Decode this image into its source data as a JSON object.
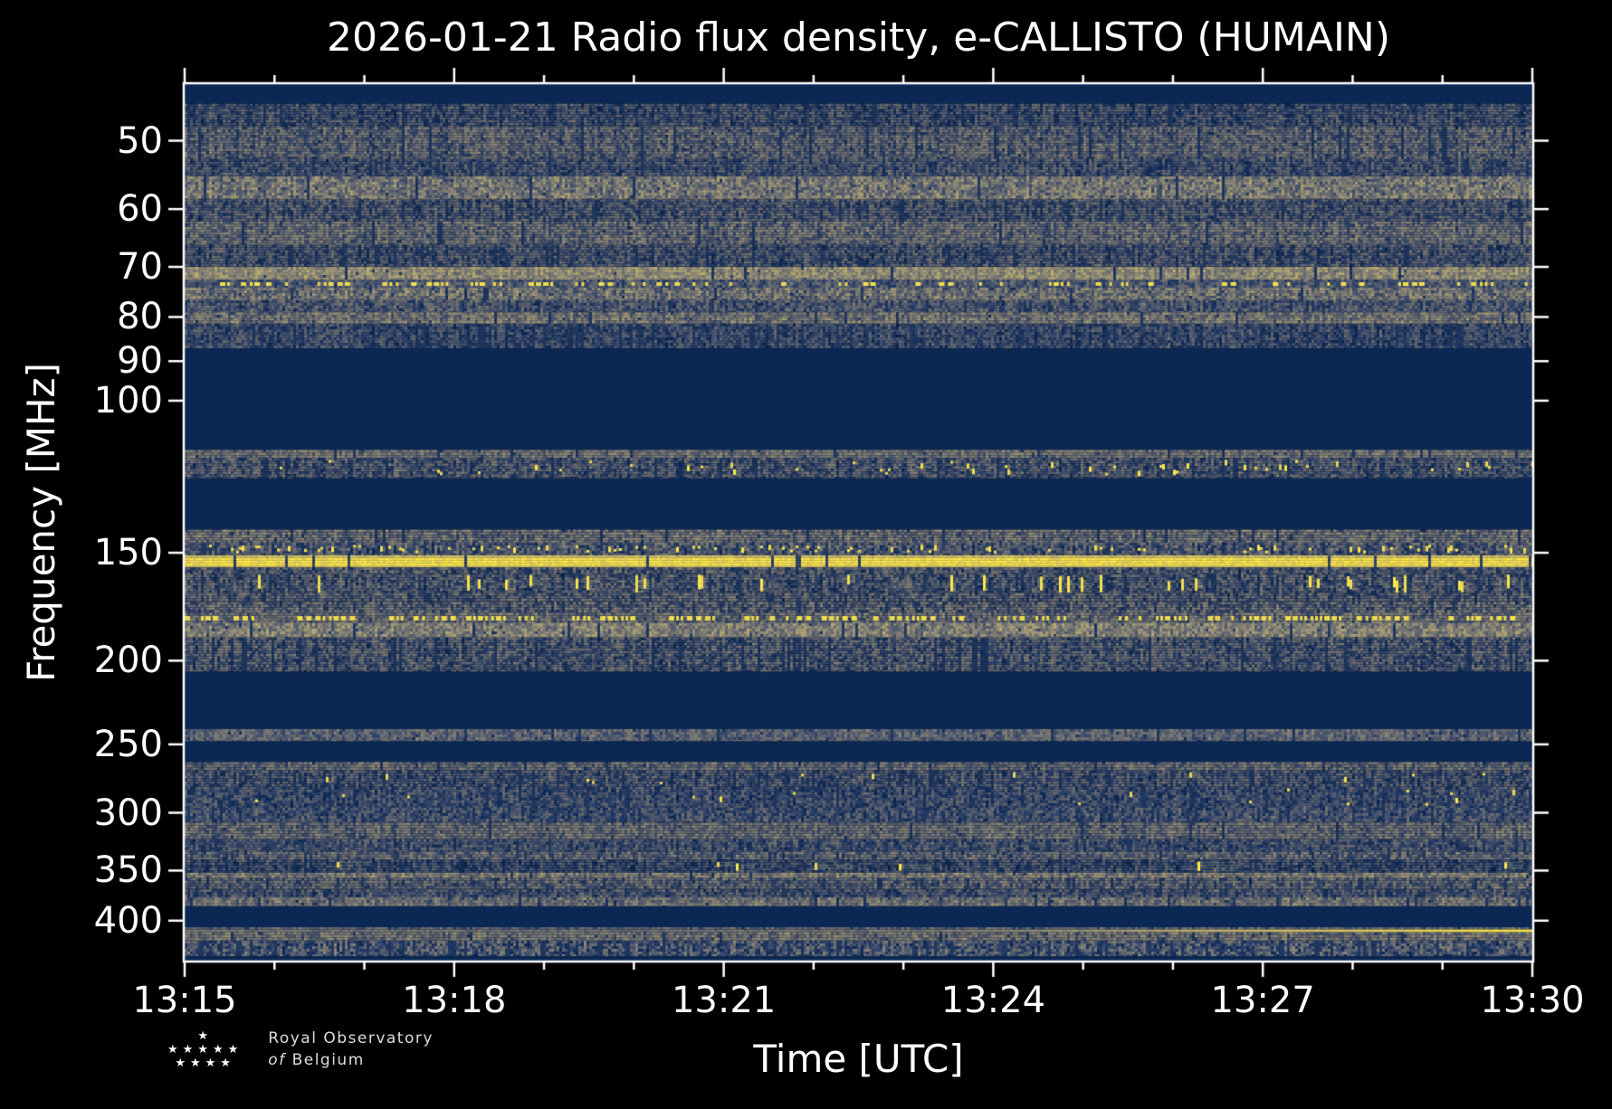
{
  "figure": {
    "title": "2026-01-21 Radio flux density, e-CALLISTO (HUMAIN)",
    "background_color": "#000000",
    "text_color": "#ffffff"
  },
  "x_axis": {
    "label": "Time [UTC]",
    "major_ticks": [
      "13:15",
      "13:18",
      "13:21",
      "13:24",
      "13:27",
      "13:30"
    ],
    "major_tick_every_minutes": 3,
    "minor_tick_every_minutes": 1,
    "start": "13:15",
    "end": "13:30"
  },
  "y_axis": {
    "label": "Frequency [MHz]",
    "scale": "log",
    "major_ticks": [
      50,
      60,
      70,
      80,
      90,
      100,
      150,
      200,
      250,
      300,
      350,
      400
    ],
    "range_mhz": [
      43,
      445
    ]
  },
  "logo": {
    "text_line1": "Royal Observatory",
    "text_line2_italic": "of",
    "text_line2": "Belgium",
    "star_rows": [
      "★",
      "★★★★★",
      "★★★★"
    ]
  },
  "chart_data": {
    "type": "heatmap",
    "title": "2026-01-21 Radio flux density, e-CALLISTO (HUMAIN)",
    "xlabel": "Time [UTC]",
    "ylabel": "Frequency [MHz]",
    "x_range_utc": [
      "13:15",
      "13:30"
    ],
    "y_range_mhz": [
      43,
      445
    ],
    "y_scale": "log",
    "legend": "none",
    "grid": false,
    "seed": 42,
    "colormap_stops": [
      [
        0.0,
        "#00204d"
      ],
      [
        0.2,
        "#31446b"
      ],
      [
        0.4,
        "#666970"
      ],
      [
        0.6,
        "#958f78"
      ],
      [
        0.8,
        "#cbba69"
      ],
      [
        1.0,
        "#ffea46"
      ]
    ],
    "bands": [
      {
        "f0": 43.0,
        "f1": 45.3,
        "kind": "solid"
      },
      {
        "f0": 45.3,
        "f1": 48.2,
        "kind": "noise",
        "base": 0.24,
        "var": 0.16,
        "dark": 0.12
      },
      {
        "f0": 48.2,
        "f1": 52.5,
        "kind": "noise",
        "base": 0.34,
        "var": 0.18,
        "dark": 0.08
      },
      {
        "f0": 52.5,
        "f1": 55.0,
        "kind": "noise",
        "base": 0.26,
        "var": 0.16,
        "dark": 0.1
      },
      {
        "f0": 55.0,
        "f1": 58.5,
        "kind": "noise",
        "base": 0.46,
        "var": 0.2,
        "dark": 0.04
      },
      {
        "f0": 58.5,
        "f1": 62.0,
        "kind": "noise",
        "base": 0.27,
        "var": 0.17,
        "dark": 0.1
      },
      {
        "f0": 62.0,
        "f1": 66.0,
        "kind": "noise",
        "base": 0.38,
        "var": 0.18,
        "dark": 0.07
      },
      {
        "f0": 66.0,
        "f1": 70.0,
        "kind": "noise",
        "base": 0.26,
        "var": 0.17,
        "dark": 0.1
      },
      {
        "f0": 70.0,
        "f1": 72.4,
        "kind": "noise",
        "base": 0.56,
        "var": 0.15,
        "dark": 0.02
      },
      {
        "f0": 72.4,
        "f1": 74.0,
        "kind": "dashes",
        "base": 0.3,
        "var": 0.15,
        "dash_on": 0.55,
        "bright": 0.97
      },
      {
        "f0": 74.0,
        "f1": 76.5,
        "kind": "noise",
        "base": 0.44,
        "var": 0.2,
        "dark": 0.05
      },
      {
        "f0": 76.5,
        "f1": 79.0,
        "kind": "noise",
        "base": 0.29,
        "var": 0.17,
        "dark": 0.1
      },
      {
        "f0": 79.0,
        "f1": 81.5,
        "kind": "noise",
        "base": 0.44,
        "var": 0.18,
        "dark": 0.05
      },
      {
        "f0": 81.5,
        "f1": 87.0,
        "kind": "noise",
        "base": 0.23,
        "var": 0.15,
        "dark": 0.16
      },
      {
        "f0": 87.0,
        "f1": 114.0,
        "kind": "solid"
      },
      {
        "f0": 114.0,
        "f1": 116.5,
        "kind": "noise",
        "base": 0.42,
        "var": 0.14,
        "dark": 0.06
      },
      {
        "f0": 116.5,
        "f1": 123.0,
        "kind": "speckle",
        "base": 0.28,
        "var": 0.18,
        "dark": 0.1,
        "p": 0.12
      },
      {
        "f0": 123.0,
        "f1": 141.0,
        "kind": "solid"
      },
      {
        "f0": 141.0,
        "f1": 146.0,
        "kind": "noise",
        "base": 0.4,
        "var": 0.18,
        "dark": 0.06
      },
      {
        "f0": 146.0,
        "f1": 151.0,
        "kind": "speckle",
        "base": 0.3,
        "var": 0.2,
        "dark": 0.1,
        "p": 0.15
      },
      {
        "f0": 151.0,
        "f1": 156.0,
        "kind": "yellowline",
        "gap": 0.035
      },
      {
        "f0": 156.0,
        "f1": 159.0,
        "kind": "noise",
        "base": 0.3,
        "var": 0.18,
        "dark": 0.14
      },
      {
        "f0": 159.0,
        "f1": 167.0,
        "kind": "bursts",
        "base": 0.28,
        "var": 0.18,
        "dark": 0.12,
        "p": 0.06
      },
      {
        "f0": 167.0,
        "f1": 171.0,
        "kind": "noise",
        "base": 0.31,
        "var": 0.18,
        "dark": 0.12
      },
      {
        "f0": 171.0,
        "f1": 176.0,
        "kind": "noise",
        "base": 0.34,
        "var": 0.2,
        "dark": 0.1
      },
      {
        "f0": 176.0,
        "f1": 181.0,
        "kind": "dashes",
        "base": 0.38,
        "var": 0.18,
        "dash_on": 0.72,
        "bright": 0.96
      },
      {
        "f0": 181.0,
        "f1": 188.0,
        "kind": "noise",
        "base": 0.5,
        "var": 0.18,
        "dark": 0.04
      },
      {
        "f0": 188.0,
        "f1": 206.0,
        "kind": "noise",
        "base": 0.28,
        "var": 0.18,
        "dark": 0.15
      },
      {
        "f0": 206.0,
        "f1": 240.0,
        "kind": "solid"
      },
      {
        "f0": 240.0,
        "f1": 248.0,
        "kind": "noise",
        "base": 0.36,
        "var": 0.14,
        "dark": 0.08
      },
      {
        "f0": 248.0,
        "f1": 262.0,
        "kind": "solid"
      },
      {
        "f0": 262.0,
        "f1": 268.0,
        "kind": "noise",
        "base": 0.38,
        "var": 0.16,
        "dark": 0.06
      },
      {
        "f0": 268.0,
        "f1": 280.0,
        "kind": "speckle",
        "base": 0.26,
        "var": 0.16,
        "dark": 0.14,
        "p": 0.02
      },
      {
        "f0": 280.0,
        "f1": 296.0,
        "kind": "speckle",
        "base": 0.24,
        "var": 0.16,
        "dark": 0.14,
        "p": 0.025,
        "p_right": 3
      },
      {
        "f0": 296.0,
        "f1": 308.0,
        "kind": "noise",
        "base": 0.26,
        "var": 0.16,
        "dark": 0.14
      },
      {
        "f0": 308.0,
        "f1": 322.0,
        "kind": "noise",
        "base": 0.38,
        "var": 0.16,
        "dark": 0.07
      },
      {
        "f0": 322.0,
        "f1": 333.0,
        "kind": "noise",
        "base": 0.26,
        "var": 0.15,
        "dark": 0.14
      },
      {
        "f0": 333.0,
        "f1": 340.0,
        "kind": "noise",
        "base": 0.35,
        "var": 0.18,
        "dark": 0.08
      },
      {
        "f0": 340.0,
        "f1": 352.0,
        "kind": "blobs",
        "base": 0.22,
        "var": 0.15,
        "dark": 0.12,
        "p": 0.025
      },
      {
        "f0": 352.0,
        "f1": 357.0,
        "kind": "noise",
        "base": 0.48,
        "var": 0.18,
        "dark": 0.04
      },
      {
        "f0": 357.0,
        "f1": 368.0,
        "kind": "noise",
        "base": 0.33,
        "var": 0.18,
        "dark": 0.1
      },
      {
        "f0": 368.0,
        "f1": 376.0,
        "kind": "noise",
        "base": 0.27,
        "var": 0.16,
        "dark": 0.13
      },
      {
        "f0": 376.0,
        "f1": 385.0,
        "kind": "noise",
        "base": 0.43,
        "var": 0.16,
        "dark": 0.06
      },
      {
        "f0": 385.0,
        "f1": 407.0,
        "kind": "solid"
      },
      {
        "f0": 407.0,
        "f1": 409.5,
        "kind": "noise",
        "base": 0.33,
        "var": 0.14,
        "dark": 0.08
      },
      {
        "f0": 409.5,
        "f1": 412.5,
        "kind": "gradline"
      },
      {
        "f0": 412.5,
        "f1": 422.0,
        "kind": "noise",
        "base": 0.42,
        "var": 0.16,
        "dark": 0.07
      },
      {
        "f0": 422.0,
        "f1": 440.0,
        "kind": "noise",
        "base": 0.3,
        "var": 0.2,
        "dark": 0.3
      },
      {
        "f0": 440.0,
        "f1": 445.0,
        "kind": "solid"
      }
    ]
  }
}
